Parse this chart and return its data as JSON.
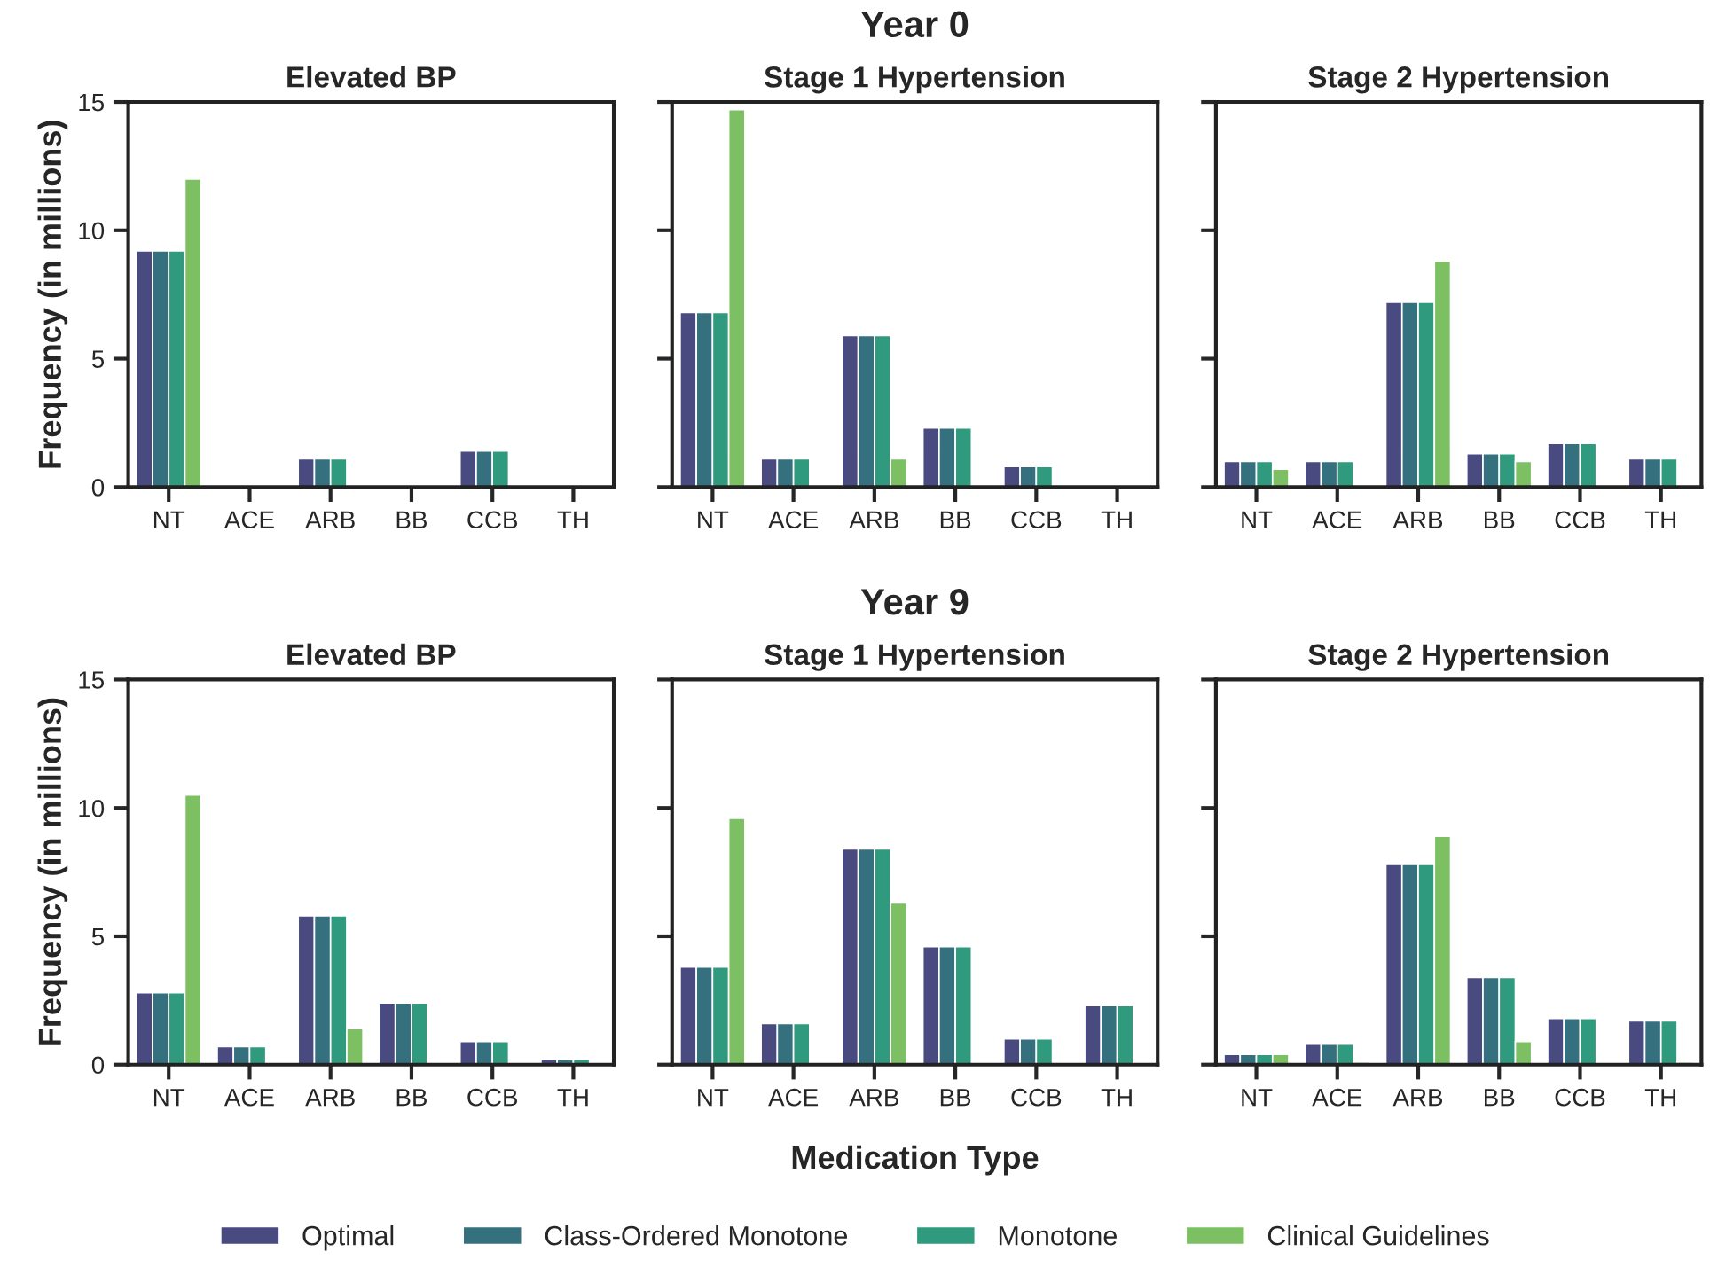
{
  "chart_data": [
    {
      "type": "bar",
      "title": "Elevated BP",
      "ylabel": "Frequency (in millions)",
      "categories": [
        "NT",
        "ACE",
        "ARB",
        "BB",
        "CCB",
        "TH"
      ],
      "ylim": [
        0,
        15
      ],
      "yticks": [
        0,
        5,
        10,
        15
      ],
      "legend": false,
      "series": [
        {
          "color": "#484a80",
          "values": [
            9.2,
            null,
            1.1,
            null,
            1.4,
            null
          ]
        },
        {
          "color": "#35707f",
          "values": [
            9.2,
            null,
            1.1,
            null,
            1.4,
            null
          ]
        },
        {
          "color": "#2f9a7d",
          "values": [
            9.2,
            null,
            1.1,
            null,
            1.4,
            null
          ]
        },
        {
          "color": "#7cc063",
          "values": [
            12.0,
            null,
            null,
            null,
            null,
            null
          ]
        }
      ]
    },
    {
      "type": "bar",
      "title": "Stage 1 Hypertension",
      "annotations": [
        "Year 0"
      ],
      "categories": [
        "NT",
        "ACE",
        "ARB",
        "BB",
        "CCB",
        "TH"
      ],
      "ylim": [
        0,
        15
      ],
      "yticks": [
        0,
        5,
        10,
        15
      ],
      "tick_labels": "x",
      "legend": false,
      "series": [
        {
          "color": "#484a80",
          "values": [
            6.8,
            1.1,
            5.9,
            2.3,
            0.8,
            null
          ]
        },
        {
          "color": "#35707f",
          "values": [
            6.8,
            1.1,
            5.9,
            2.3,
            0.8,
            null
          ]
        },
        {
          "color": "#2f9a7d",
          "values": [
            6.8,
            1.1,
            5.9,
            2.3,
            0.8,
            null
          ]
        },
        {
          "color": "#7cc063",
          "values": [
            14.7,
            null,
            1.1,
            null,
            null,
            null
          ]
        }
      ]
    },
    {
      "type": "bar",
      "title": "Stage 2 Hypertension",
      "categories": [
        "NT",
        "ACE",
        "ARB",
        "BB",
        "CCB",
        "TH"
      ],
      "ylim": [
        0,
        15
      ],
      "yticks": [
        0,
        5,
        10,
        15
      ],
      "tick_labels": "x",
      "legend": false,
      "series": [
        {
          "color": "#484a80",
          "values": [
            1.0,
            1.0,
            7.2,
            1.3,
            1.7,
            1.1
          ]
        },
        {
          "color": "#35707f",
          "values": [
            1.0,
            1.0,
            7.2,
            1.3,
            1.7,
            1.1
          ]
        },
        {
          "color": "#2f9a7d",
          "values": [
            1.0,
            1.0,
            7.2,
            1.3,
            1.7,
            1.1
          ]
        },
        {
          "color": "#7cc063",
          "values": [
            0.7,
            null,
            8.8,
            1.0,
            null,
            null
          ]
        }
      ]
    },
    {
      "type": "bar",
      "title": "Elevated BP",
      "ylabel": "Frequency (in millions)",
      "categories": [
        "NT",
        "ACE",
        "ARB",
        "BB",
        "CCB",
        "TH"
      ],
      "ylim": [
        0,
        15
      ],
      "yticks": [
        0,
        5,
        10,
        15
      ],
      "legend": false,
      "series": [
        {
          "color": "#484a80",
          "values": [
            2.8,
            0.7,
            5.8,
            2.4,
            0.9,
            0.2
          ]
        },
        {
          "color": "#35707f",
          "values": [
            2.8,
            0.7,
            5.8,
            2.4,
            0.9,
            0.2
          ]
        },
        {
          "color": "#2f9a7d",
          "values": [
            2.8,
            0.7,
            5.8,
            2.4,
            0.9,
            0.2
          ]
        },
        {
          "color": "#7cc063",
          "values": [
            10.5,
            null,
            1.4,
            null,
            null,
            null
          ]
        }
      ]
    },
    {
      "type": "bar",
      "title": "Stage 1 Hypertension",
      "annotations": [
        "Year 9"
      ],
      "xlabel": "Medication Type",
      "categories": [
        "NT",
        "ACE",
        "ARB",
        "BB",
        "CCB",
        "TH"
      ],
      "ylim": [
        0,
        15
      ],
      "yticks": [
        0,
        5,
        10,
        15
      ],
      "tick_labels": "x",
      "legend": false,
      "series": [
        {
          "color": "#484a80",
          "values": [
            3.8,
            1.6,
            8.4,
            4.6,
            1.0,
            2.3
          ]
        },
        {
          "color": "#35707f",
          "values": [
            3.8,
            1.6,
            8.4,
            4.6,
            1.0,
            2.3
          ]
        },
        {
          "color": "#2f9a7d",
          "values": [
            3.8,
            1.6,
            8.4,
            4.6,
            1.0,
            2.3
          ]
        },
        {
          "color": "#7cc063",
          "values": [
            9.6,
            null,
            6.3,
            null,
            null,
            null
          ]
        }
      ]
    },
    {
      "type": "bar",
      "title": "Stage 2 Hypertension",
      "categories": [
        "NT",
        "ACE",
        "ARB",
        "BB",
        "CCB",
        "TH"
      ],
      "ylim": [
        0,
        15
      ],
      "yticks": [
        0,
        5,
        10,
        15
      ],
      "tick_labels": "x",
      "legend": "bottom",
      "series": [
        {
          "name": "Optimal",
          "color": "#484a80",
          "values": [
            0.4,
            0.8,
            7.8,
            3.4,
            1.8,
            1.7
          ]
        },
        {
          "name": "Class-Ordered Monotone",
          "color": "#35707f",
          "values": [
            0.4,
            0.8,
            7.8,
            3.4,
            1.8,
            1.7
          ]
        },
        {
          "name": "Monotone",
          "color": "#2f9a7d",
          "values": [
            0.4,
            0.8,
            7.8,
            3.4,
            1.8,
            1.7
          ]
        },
        {
          "name": "Clinical Guidelines",
          "color": "#7cc063",
          "values": [
            0.4,
            0.1,
            8.9,
            0.9,
            null,
            0.1
          ]
        }
      ]
    }
  ]
}
